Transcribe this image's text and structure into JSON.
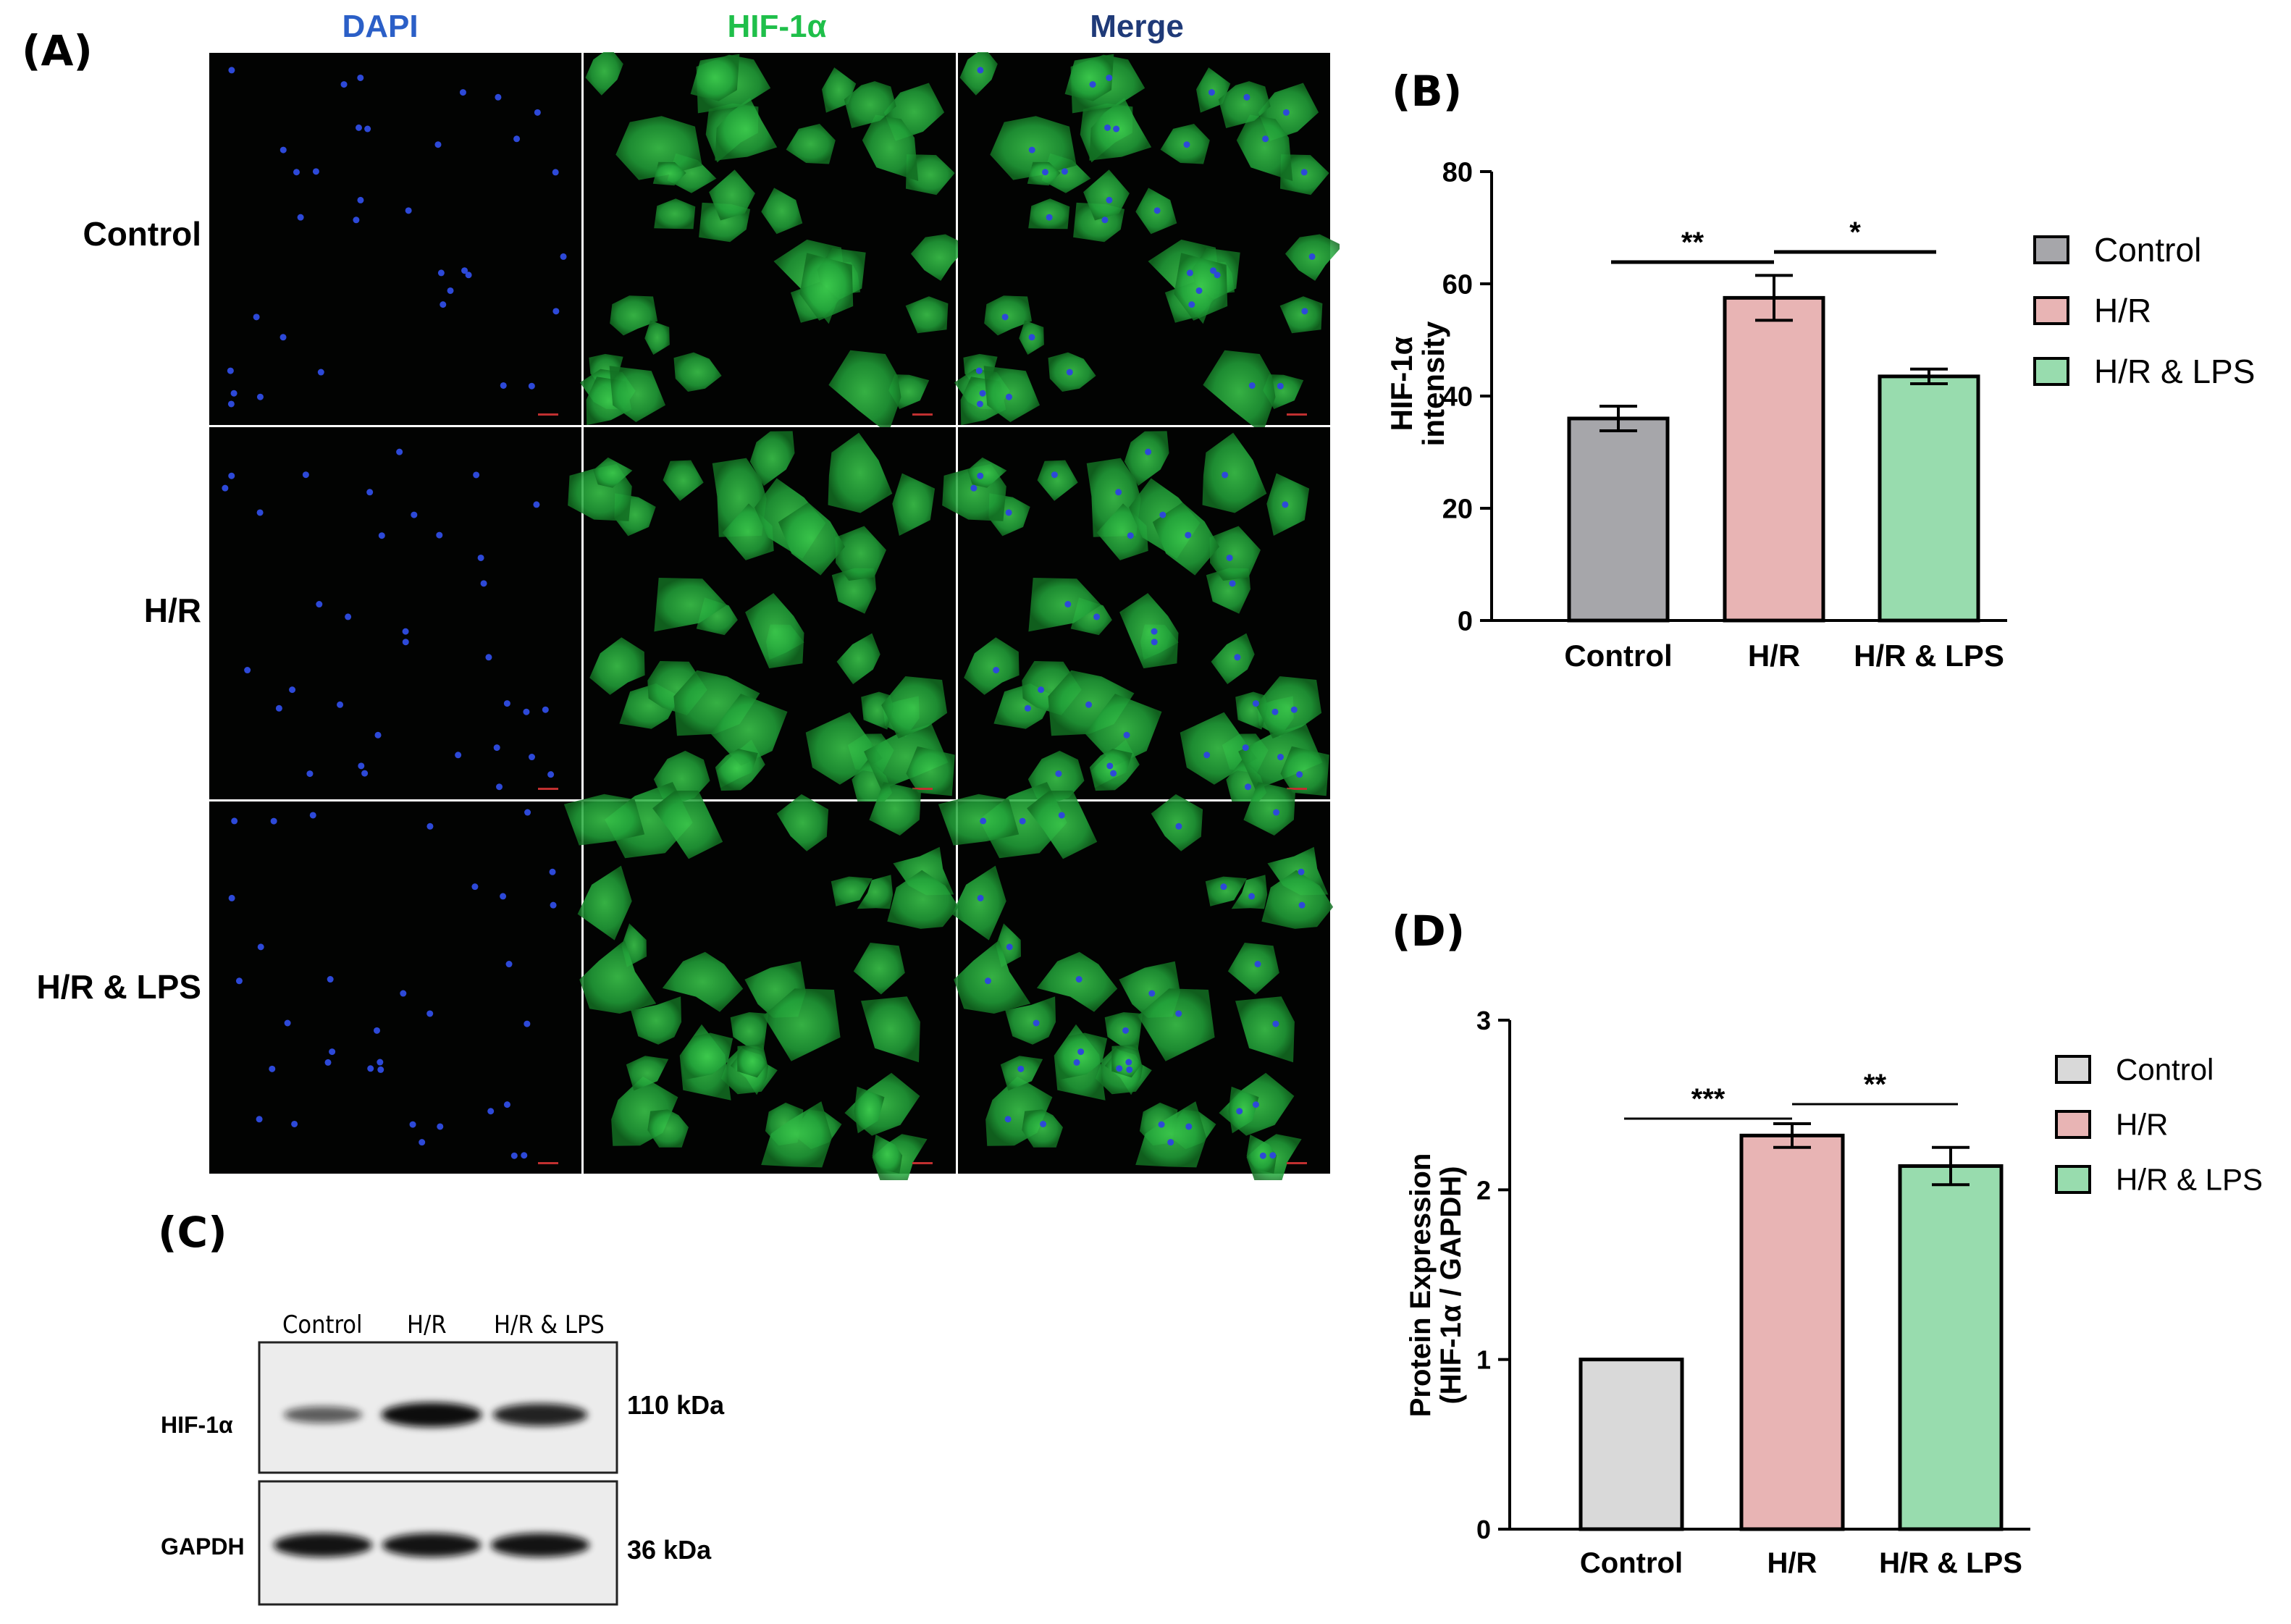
{
  "panels": {
    "a": "(A)",
    "b": "(B)",
    "c": "(C)",
    "d": "(D)"
  },
  "microscopy": {
    "columns": [
      {
        "label": "DAPI",
        "color": "#2b5fc7"
      },
      {
        "label": "HIF-1α",
        "color": "#1fbf4a"
      },
      {
        "label": "Merge",
        "color": "#1f3a78"
      }
    ],
    "rows": [
      "Control",
      "H/R",
      "H/R & LPS"
    ]
  },
  "western_blot": {
    "lanes": [
      "Control",
      "H/R",
      "H/R & LPS"
    ],
    "bands": [
      {
        "protein": "HIF-1α",
        "size": "110 kDa",
        "intensity": [
          0.45,
          1.0,
          0.85
        ]
      },
      {
        "protein": "GAPDH",
        "size": "36 kDa",
        "intensity": [
          0.95,
          0.95,
          0.95
        ]
      }
    ]
  },
  "chart_data": [
    {
      "type": "bar",
      "panel": "B",
      "categories": [
        "Control",
        "H/R",
        "H/R & LPS"
      ],
      "values": [
        36,
        57.5,
        43.5
      ],
      "errors": [
        2.2,
        4.0,
        1.3
      ],
      "colors": [
        "#a6a6aa",
        "#e8b4b4",
        "#98dcae"
      ],
      "ylabel": "HIF-1α intensity",
      "ylim": [
        0,
        80
      ],
      "yticks": [
        "0",
        "20",
        "40",
        "60",
        "80"
      ],
      "legend": [
        "Control",
        "H/R",
        "H/R & LPS"
      ],
      "legend_position": "right",
      "significance": [
        {
          "from": 0,
          "to": 1,
          "label": "**"
        },
        {
          "from": 1,
          "to": 2,
          "label": "*"
        }
      ]
    },
    {
      "type": "bar",
      "panel": "D",
      "categories": [
        "Control",
        "H/R",
        "H/R & LPS"
      ],
      "values": [
        1.0,
        2.32,
        2.14
      ],
      "errors": [
        0,
        0.07,
        0.11
      ],
      "colors": [
        "#d9d9d9",
        "#e8b4b4",
        "#98dcae"
      ],
      "ylabel": "Protein Expression (HIF-1α / GAPDH)",
      "ylabel_lines": [
        "Protein Expression",
        "(HIF-1α / GAPDH)"
      ],
      "ylim": [
        0,
        3
      ],
      "yticks": [
        "0",
        "1",
        "2",
        "3"
      ],
      "legend": [
        "Control",
        "H/R",
        "H/R & LPS"
      ],
      "legend_position": "right",
      "significance": [
        {
          "from": 0,
          "to": 1,
          "label": "***"
        },
        {
          "from": 1,
          "to": 2,
          "label": "**"
        }
      ]
    }
  ]
}
